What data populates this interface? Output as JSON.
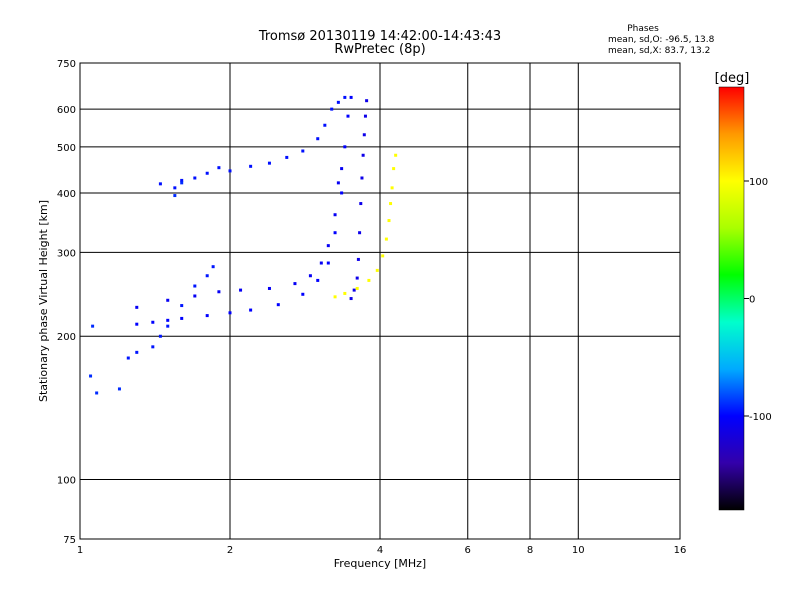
{
  "chart_data": {
    "type": "scatter",
    "title": "Tromsø 20130119 14:42:00-14:43:43",
    "subtitle": "RwPretec (8p)",
    "xlabel": "Frequency [MHz]",
    "ylabel": "Stationary phase Virtual Height [km]",
    "x_scale": "log",
    "y_scale": "log",
    "xlim": [
      1,
      16
    ],
    "ylim": [
      75,
      750
    ],
    "x_ticks": [
      "1",
      "2",
      "4",
      "6",
      "8",
      "10",
      "16"
    ],
    "x_tick_values": [
      1,
      2,
      4,
      6,
      8,
      10,
      16
    ],
    "y_ticks": [
      "75",
      "100",
      "200",
      "300",
      "400",
      "500",
      "600",
      "750"
    ],
    "y_tick_values": [
      75,
      100,
      200,
      300,
      400,
      500,
      600,
      750
    ],
    "grid": true,
    "stats_title": "Phases",
    "stats_lines": [
      "mean, sd,O: -96.5, 13.8",
      "mean, sd,X: 83.7, 13.2"
    ],
    "colorbar": {
      "label": "[deg]",
      "range": [
        -180,
        180
      ],
      "ticks": [
        "100",
        "0",
        "-100"
      ],
      "tick_values": [
        100,
        0,
        -100
      ],
      "colors": [
        "#000000",
        "#3300aa",
        "#0000ff",
        "#00aaff",
        "#00ffcc",
        "#00ff00",
        "#aaff00",
        "#ffff00",
        "#ff9900",
        "#ff0000"
      ]
    },
    "traces": [
      {
        "phase": -96.5,
        "points": [
          [
            1.45,
            418
          ],
          [
            1.55,
            410
          ],
          [
            1.6,
            425
          ],
          [
            1.7,
            430
          ],
          [
            1.8,
            440
          ],
          [
            1.9,
            452
          ],
          [
            2.0,
            445
          ],
          [
            2.2,
            455
          ],
          [
            2.4,
            462
          ],
          [
            2.6,
            475
          ],
          [
            2.8,
            490
          ],
          [
            3.0,
            520
          ],
          [
            3.1,
            555
          ],
          [
            3.2,
            600
          ],
          [
            3.3,
            620
          ],
          [
            3.4,
            635
          ]
        ]
      },
      {
        "phase": -100,
        "points": [
          [
            1.3,
            212
          ],
          [
            1.4,
            214
          ],
          [
            1.5,
            216
          ],
          [
            1.6,
            218
          ],
          [
            1.8,
            221
          ],
          [
            2.0,
            224
          ],
          [
            2.2,
            227
          ],
          [
            2.5,
            233
          ],
          [
            2.8,
            245
          ],
          [
            3.0,
            262
          ],
          [
            3.15,
            285
          ],
          [
            3.25,
            330
          ],
          [
            3.35,
            400
          ],
          [
            3.4,
            500
          ],
          [
            3.45,
            580
          ],
          [
            3.5,
            635
          ]
        ]
      },
      {
        "phase": -105,
        "points": [
          [
            1.3,
            230
          ],
          [
            1.5,
            238
          ],
          [
            1.7,
            243
          ],
          [
            1.9,
            248
          ],
          [
            2.1,
            250
          ],
          [
            2.4,
            252
          ],
          [
            2.7,
            258
          ],
          [
            2.9,
            268
          ],
          [
            3.05,
            285
          ],
          [
            3.15,
            310
          ],
          [
            3.25,
            360
          ],
          [
            3.3,
            420
          ],
          [
            3.35,
            450
          ]
        ]
      },
      {
        "phase": -95,
        "points": [
          [
            1.25,
            180
          ],
          [
            1.3,
            185
          ],
          [
            1.4,
            190
          ],
          [
            1.45,
            200
          ],
          [
            1.5,
            210
          ],
          [
            1.6,
            232
          ],
          [
            1.7,
            255
          ],
          [
            1.8,
            268
          ],
          [
            1.85,
            280
          ]
        ]
      },
      {
        "phase": -110,
        "points": [
          [
            3.5,
            240
          ],
          [
            3.55,
            250
          ],
          [
            3.6,
            265
          ],
          [
            3.62,
            290
          ],
          [
            3.64,
            330
          ],
          [
            3.66,
            380
          ],
          [
            3.68,
            430
          ],
          [
            3.7,
            480
          ],
          [
            3.72,
            530
          ],
          [
            3.74,
            580
          ],
          [
            3.76,
            625
          ]
        ]
      },
      {
        "phase": 100,
        "points": [
          [
            3.25,
            242
          ],
          [
            3.4,
            246
          ],
          [
            3.6,
            252
          ],
          [
            3.8,
            262
          ],
          [
            3.95,
            275
          ],
          [
            4.05,
            295
          ],
          [
            4.12,
            320
          ],
          [
            4.17,
            350
          ],
          [
            4.2,
            380
          ],
          [
            4.23,
            410
          ],
          [
            4.26,
            450
          ],
          [
            4.3,
            480
          ]
        ]
      },
      {
        "phase": -90,
        "points": [
          [
            1.05,
            165
          ],
          [
            1.08,
            152
          ],
          [
            1.06,
            210
          ],
          [
            1.2,
            155
          ],
          [
            1.6,
            420
          ],
          [
            1.55,
            395
          ]
        ]
      }
    ]
  }
}
